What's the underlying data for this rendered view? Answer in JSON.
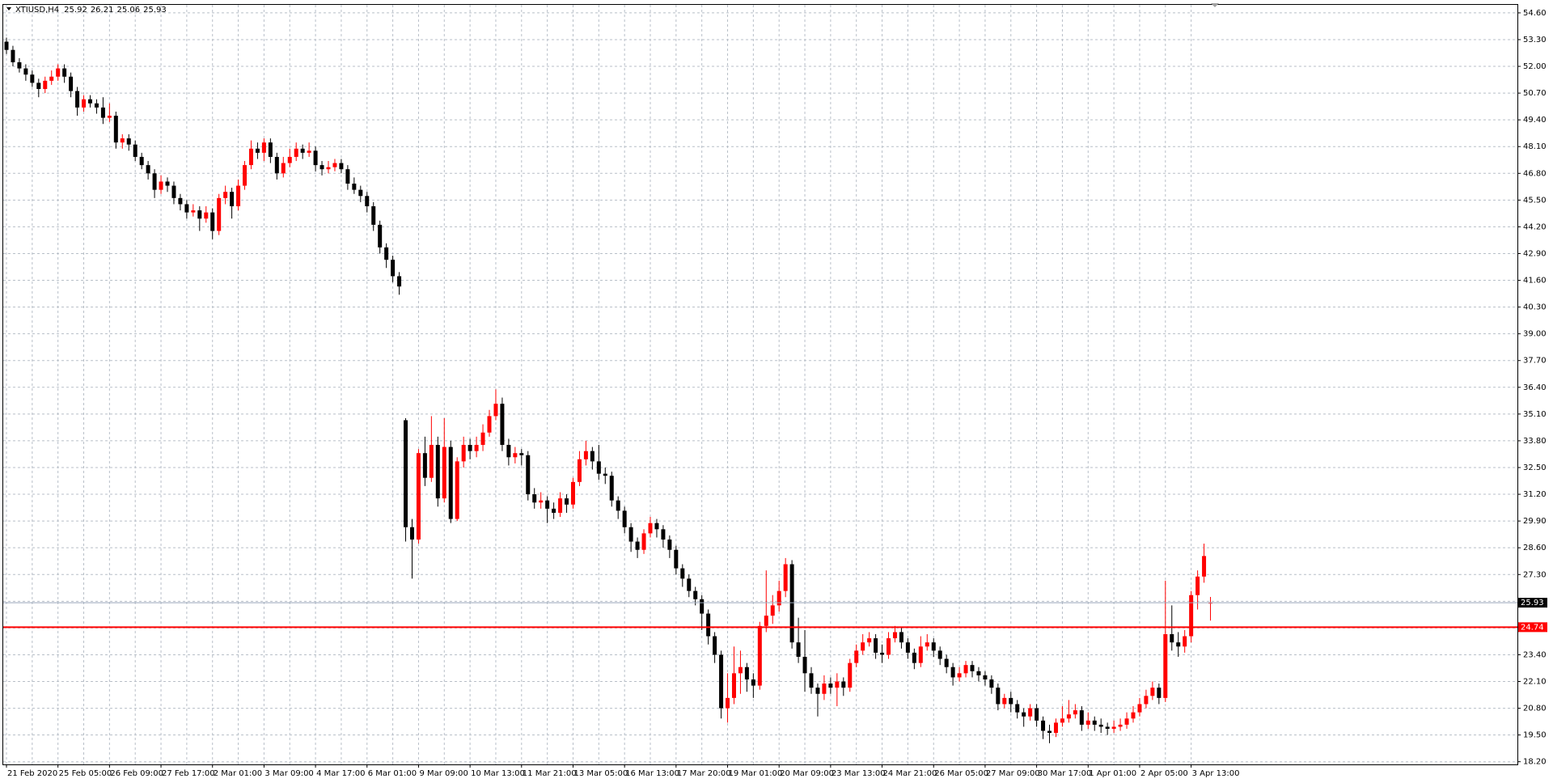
{
  "chart_data": {
    "type": "candlestick",
    "symbol": "XTIUSD,H4",
    "up_color": "#ff0000",
    "down_color": "#000000",
    "grid": true,
    "grid_color": "#b8bfc8",
    "ylim": [
      18.07,
      54.99
    ],
    "yticks": [
      {
        "value": 18.2,
        "label": "18.20"
      },
      {
        "value": 19.5,
        "label": "19.50"
      },
      {
        "value": 20.8,
        "label": "20.80"
      },
      {
        "value": 22.1,
        "label": "22.10"
      },
      {
        "value": 23.4,
        "label": "23.40"
      },
      {
        "value": 24.7,
        "label": "24.70"
      },
      {
        "value": 26.0,
        "label": "26.00"
      },
      {
        "value": 27.3,
        "label": "27.30"
      },
      {
        "value": 28.6,
        "label": "28.60"
      },
      {
        "value": 29.9,
        "label": "29.90"
      },
      {
        "value": 31.2,
        "label": "31.20"
      },
      {
        "value": 32.5,
        "label": "32.50"
      },
      {
        "value": 33.8,
        "label": "33.80"
      },
      {
        "value": 35.1,
        "label": "35.10"
      },
      {
        "value": 36.4,
        "label": "36.40"
      },
      {
        "value": 37.7,
        "label": "37.70"
      },
      {
        "value": 39.0,
        "label": "39.00"
      },
      {
        "value": 40.3,
        "label": "40.30"
      },
      {
        "value": 41.6,
        "label": "41.60"
      },
      {
        "value": 42.9,
        "label": "42.90"
      },
      {
        "value": 44.2,
        "label": "44.20"
      },
      {
        "value": 45.5,
        "label": "45.50"
      },
      {
        "value": 46.8,
        "label": "46.80"
      },
      {
        "value": 48.1,
        "label": "48.10"
      },
      {
        "value": 49.4,
        "label": "49.40"
      },
      {
        "value": 50.7,
        "label": "50.70"
      },
      {
        "value": 52.0,
        "label": "52.00"
      },
      {
        "value": 53.3,
        "label": "53.30"
      },
      {
        "value": 54.6,
        "label": "54.60"
      }
    ],
    "price_lines": [
      {
        "value": 25.93,
        "color": "#9aa8bb",
        "label_color": "#000000"
      },
      {
        "value": 24.74,
        "color": "#ff0000",
        "label_color": "#ff0000"
      }
    ],
    "categories": [
      "21 Feb 2020",
      null,
      null,
      null,
      null,
      null,
      null,
      null,
      "25 Feb 05:00",
      null,
      null,
      null,
      null,
      null,
      null,
      null,
      "26 Feb 09:00",
      null,
      null,
      null,
      null,
      null,
      null,
      null,
      "27 Feb 17:00",
      null,
      null,
      null,
      null,
      null,
      null,
      null,
      "2 Mar 01:00",
      null,
      null,
      null,
      null,
      null,
      null,
      null,
      "3 Mar 09:00",
      null,
      null,
      null,
      null,
      null,
      null,
      null,
      "4 Mar 17:00",
      null,
      null,
      null,
      null,
      null,
      null,
      null,
      "6 Mar 01:00",
      null,
      null,
      null,
      null,
      null,
      null,
      null,
      "9 Mar 09:00",
      null,
      null,
      null,
      null,
      null,
      null,
      null,
      "10 Mar 13:00",
      null,
      null,
      null,
      null,
      null,
      null,
      null,
      "11 Mar 21:00",
      null,
      null,
      null,
      null,
      null,
      null,
      null,
      "13 Mar 05:00",
      null,
      null,
      null,
      null,
      null,
      null,
      null,
      "16 Mar 13:00",
      null,
      null,
      null,
      null,
      null,
      null,
      null,
      "17 Mar 20:00",
      null,
      null,
      null,
      null,
      null,
      null,
      null,
      "19 Mar 01:00",
      null,
      null,
      null,
      null,
      null,
      null,
      null,
      "20 Mar 09:00",
      null,
      null,
      null,
      null,
      null,
      null,
      null,
      "23 Mar 13:00",
      null,
      null,
      null,
      null,
      null,
      null,
      null,
      "24 Mar 21:00",
      null,
      null,
      null,
      null,
      null,
      null,
      null,
      "26 Mar 05:00",
      null,
      null,
      null,
      null,
      null,
      null,
      null,
      "27 Mar 09:00",
      null,
      null,
      null,
      null,
      null,
      null,
      null,
      "30 Mar 17:00",
      null,
      null,
      null,
      null,
      null,
      null,
      null,
      "1 Apr 01:00",
      null,
      null,
      null,
      null,
      null,
      null,
      null,
      "2 Apr 05:00",
      null,
      null,
      null,
      null,
      null,
      null,
      null,
      "3 Apr 13:00",
      null,
      null,
      null
    ],
    "ohlc": [
      [
        53.2,
        53.4,
        52.6,
        52.8
      ],
      [
        52.8,
        53.0,
        52.0,
        52.2
      ],
      [
        52.2,
        52.4,
        51.7,
        51.9
      ],
      [
        51.9,
        52.1,
        51.3,
        51.6
      ],
      [
        51.6,
        51.8,
        51.0,
        51.2
      ],
      [
        51.2,
        51.4,
        50.5,
        50.9
      ],
      [
        50.9,
        51.5,
        50.7,
        51.3
      ],
      [
        51.3,
        51.8,
        51.1,
        51.5
      ],
      [
        51.5,
        52.1,
        51.3,
        51.9
      ],
      [
        51.9,
        52.1,
        51.2,
        51.5
      ],
      [
        51.5,
        51.7,
        50.5,
        50.8
      ],
      [
        50.8,
        51.0,
        49.6,
        50.0
      ],
      [
        50.0,
        50.6,
        49.8,
        50.4
      ],
      [
        50.4,
        50.6,
        50.0,
        50.2
      ],
      [
        50.2,
        50.4,
        49.7,
        50.0
      ],
      [
        50.0,
        50.5,
        49.2,
        49.5
      ],
      [
        49.5,
        50.2,
        49.3,
        49.6
      ],
      [
        49.6,
        49.8,
        48.0,
        48.3
      ],
      [
        48.3,
        48.7,
        48.0,
        48.5
      ],
      [
        48.5,
        48.7,
        47.9,
        48.2
      ],
      [
        48.2,
        48.4,
        47.4,
        47.6
      ],
      [
        47.6,
        47.8,
        47.0,
        47.2
      ],
      [
        47.2,
        47.4,
        46.5,
        46.8
      ],
      [
        46.8,
        47.0,
        45.6,
        46.0
      ],
      [
        46.0,
        46.7,
        45.8,
        46.4
      ],
      [
        46.4,
        46.6,
        45.9,
        46.2
      ],
      [
        46.2,
        46.4,
        45.3,
        45.6
      ],
      [
        45.6,
        45.8,
        45.0,
        45.3
      ],
      [
        45.3,
        45.5,
        44.6,
        44.9
      ],
      [
        44.9,
        45.3,
        44.7,
        45.0
      ],
      [
        45.0,
        45.2,
        44.0,
        44.6
      ],
      [
        44.6,
        45.2,
        44.4,
        44.9
      ],
      [
        44.9,
        45.1,
        43.6,
        44.0
      ],
      [
        44.0,
        45.8,
        43.8,
        45.6
      ],
      [
        45.6,
        46.2,
        45.3,
        45.9
      ],
      [
        45.9,
        46.1,
        44.6,
        45.2
      ],
      [
        45.2,
        46.5,
        45.0,
        46.2
      ],
      [
        46.2,
        47.4,
        46.0,
        47.2
      ],
      [
        47.2,
        48.4,
        47.0,
        48.0
      ],
      [
        48.0,
        48.3,
        47.5,
        47.8
      ],
      [
        47.8,
        48.5,
        47.4,
        48.3
      ],
      [
        48.3,
        48.5,
        47.3,
        47.6
      ],
      [
        47.6,
        47.8,
        46.5,
        46.8
      ],
      [
        46.8,
        47.6,
        46.6,
        47.3
      ],
      [
        47.3,
        48.0,
        47.1,
        47.6
      ],
      [
        47.6,
        48.3,
        47.4,
        48.0
      ],
      [
        48.0,
        48.2,
        47.5,
        47.8
      ],
      [
        47.8,
        48.3,
        47.6,
        47.9
      ],
      [
        47.9,
        48.1,
        46.9,
        47.2
      ],
      [
        47.2,
        47.4,
        46.7,
        47.0
      ],
      [
        47.0,
        47.4,
        46.8,
        47.1
      ],
      [
        47.1,
        47.5,
        46.9,
        47.3
      ],
      [
        47.3,
        47.5,
        46.8,
        47.0
      ],
      [
        47.0,
        47.2,
        46.0,
        46.3
      ],
      [
        46.3,
        46.6,
        45.8,
        46.0
      ],
      [
        46.0,
        46.2,
        45.4,
        45.7
      ],
      [
        45.7,
        45.9,
        44.9,
        45.2
      ],
      [
        45.2,
        45.4,
        44.0,
        44.3
      ],
      [
        44.3,
        44.5,
        42.9,
        43.2
      ],
      [
        43.2,
        43.4,
        42.2,
        42.6
      ],
      [
        42.6,
        42.8,
        41.5,
        41.8
      ],
      [
        41.8,
        42.0,
        40.9,
        41.3
      ],
      [
        34.8,
        34.9,
        28.9,
        29.6
      ],
      [
        29.6,
        30.0,
        27.1,
        29.0
      ],
      [
        29.0,
        33.4,
        28.8,
        33.2
      ],
      [
        33.2,
        34.0,
        31.6,
        32.0
      ],
      [
        32.0,
        35.0,
        31.8,
        33.6
      ],
      [
        33.6,
        34.0,
        30.6,
        31.0
      ],
      [
        31.0,
        34.9,
        30.8,
        33.5
      ],
      [
        33.5,
        33.8,
        29.8,
        30.0
      ],
      [
        30.0,
        33.0,
        29.9,
        32.8
      ],
      [
        32.8,
        34.0,
        32.5,
        33.6
      ],
      [
        33.6,
        33.9,
        32.9,
        33.3
      ],
      [
        33.3,
        34.0,
        33.0,
        33.6
      ],
      [
        33.6,
        34.6,
        33.3,
        34.2
      ],
      [
        34.2,
        35.3,
        34.0,
        35.0
      ],
      [
        35.0,
        36.3,
        34.8,
        35.6
      ],
      [
        35.6,
        35.9,
        33.3,
        33.6
      ],
      [
        33.6,
        33.9,
        32.6,
        33.0
      ],
      [
        33.0,
        33.5,
        32.7,
        33.2
      ],
      [
        33.2,
        33.4,
        32.6,
        33.1
      ],
      [
        33.1,
        33.3,
        30.9,
        31.2
      ],
      [
        31.2,
        31.5,
        30.5,
        30.8
      ],
      [
        30.8,
        31.3,
        30.5,
        30.9
      ],
      [
        30.9,
        31.1,
        29.8,
        30.5
      ],
      [
        30.5,
        30.8,
        30.0,
        30.3
      ],
      [
        30.3,
        31.3,
        30.1,
        31.0
      ],
      [
        31.0,
        31.2,
        30.3,
        30.7
      ],
      [
        30.7,
        32.0,
        30.5,
        31.8
      ],
      [
        31.8,
        33.3,
        31.6,
        32.9
      ],
      [
        32.9,
        33.8,
        32.6,
        33.3
      ],
      [
        33.3,
        33.5,
        32.4,
        32.8
      ],
      [
        32.8,
        33.6,
        31.9,
        32.2
      ],
      [
        32.2,
        32.5,
        31.7,
        32.1
      ],
      [
        32.1,
        32.3,
        30.6,
        30.9
      ],
      [
        30.9,
        31.1,
        30.0,
        30.4
      ],
      [
        30.4,
        30.6,
        29.3,
        29.6
      ],
      [
        29.6,
        29.8,
        28.4,
        28.9
      ],
      [
        28.9,
        29.1,
        28.1,
        28.5
      ],
      [
        28.5,
        29.5,
        28.3,
        29.3
      ],
      [
        29.3,
        30.1,
        29.1,
        29.8
      ],
      [
        29.8,
        30.0,
        29.1,
        29.5
      ],
      [
        29.5,
        29.7,
        28.6,
        29.0
      ],
      [
        29.0,
        29.2,
        28.1,
        28.5
      ],
      [
        28.5,
        28.7,
        27.3,
        27.6
      ],
      [
        27.6,
        27.8,
        26.7,
        27.1
      ],
      [
        27.1,
        27.3,
        26.2,
        26.5
      ],
      [
        26.5,
        26.7,
        25.8,
        26.1
      ],
      [
        26.1,
        26.3,
        24.6,
        25.4
      ],
      [
        25.4,
        25.6,
        23.9,
        24.3
      ],
      [
        24.3,
        24.5,
        23.0,
        23.4
      ],
      [
        23.4,
        23.6,
        20.3,
        20.8
      ],
      [
        20.8,
        22.5,
        20.1,
        21.3
      ],
      [
        21.3,
        23.8,
        21.0,
        22.5
      ],
      [
        22.5,
        23.6,
        21.5,
        22.8
      ],
      [
        22.8,
        23.0,
        21.6,
        22.2
      ],
      [
        22.2,
        22.5,
        21.3,
        21.9
      ],
      [
        21.9,
        25.0,
        21.7,
        24.8
      ],
      [
        24.8,
        27.5,
        24.5,
        25.3
      ],
      [
        25.3,
        26.3,
        24.9,
        25.8
      ],
      [
        25.8,
        27.0,
        25.5,
        26.5
      ],
      [
        26.5,
        28.1,
        26.2,
        27.8
      ],
      [
        27.8,
        28.0,
        23.7,
        24.0
      ],
      [
        24.0,
        25.2,
        23.0,
        23.3
      ],
      [
        23.3,
        24.6,
        21.6,
        22.5
      ],
      [
        22.5,
        22.8,
        21.5,
        21.8
      ],
      [
        21.8,
        22.0,
        20.4,
        21.5
      ],
      [
        21.5,
        22.4,
        21.2,
        22.0
      ],
      [
        22.0,
        22.3,
        21.5,
        21.8
      ],
      [
        21.8,
        22.5,
        20.9,
        22.1
      ],
      [
        22.1,
        22.3,
        21.4,
        21.8
      ],
      [
        21.8,
        23.2,
        21.6,
        23.0
      ],
      [
        23.0,
        23.9,
        22.8,
        23.6
      ],
      [
        23.6,
        24.4,
        23.4,
        24.0
      ],
      [
        24.0,
        24.5,
        23.8,
        24.2
      ],
      [
        24.2,
        24.4,
        23.2,
        23.5
      ],
      [
        23.5,
        23.9,
        23.0,
        23.4
      ],
      [
        23.4,
        24.5,
        23.2,
        24.2
      ],
      [
        24.2,
        24.8,
        24.0,
        24.5
      ],
      [
        24.5,
        24.7,
        23.7,
        24.0
      ],
      [
        24.0,
        24.2,
        23.2,
        23.5
      ],
      [
        23.5,
        23.7,
        22.7,
        23.0
      ],
      [
        23.0,
        24.3,
        22.8,
        23.8
      ],
      [
        23.8,
        24.4,
        23.6,
        24.0
      ],
      [
        24.0,
        24.2,
        23.3,
        23.6
      ],
      [
        23.6,
        23.8,
        22.9,
        23.2
      ],
      [
        23.2,
        23.4,
        22.5,
        22.8
      ],
      [
        22.8,
        23.0,
        21.9,
        22.3
      ],
      [
        22.3,
        22.8,
        22.1,
        22.5
      ],
      [
        22.5,
        23.1,
        22.3,
        22.9
      ],
      [
        22.9,
        23.1,
        22.3,
        22.6
      ],
      [
        22.6,
        22.8,
        22.1,
        22.4
      ],
      [
        22.4,
        22.6,
        21.9,
        22.2
      ],
      [
        22.2,
        22.4,
        21.5,
        21.8
      ],
      [
        21.8,
        22.0,
        20.7,
        21.0
      ],
      [
        21.0,
        21.5,
        20.8,
        21.3
      ],
      [
        21.3,
        21.6,
        20.6,
        21.0
      ],
      [
        21.0,
        21.2,
        20.3,
        20.6
      ],
      [
        20.6,
        20.8,
        19.9,
        20.4
      ],
      [
        20.4,
        21.0,
        20.2,
        20.8
      ],
      [
        20.8,
        21.0,
        19.9,
        20.2
      ],
      [
        20.2,
        20.4,
        19.3,
        19.7
      ],
      [
        19.7,
        20.0,
        19.1,
        19.6
      ],
      [
        19.6,
        20.3,
        19.4,
        20.1
      ],
      [
        20.1,
        20.9,
        19.9,
        20.3
      ],
      [
        20.3,
        21.2,
        20.1,
        20.5
      ],
      [
        20.5,
        21.0,
        20.3,
        20.7
      ],
      [
        20.7,
        20.9,
        19.7,
        20.0
      ],
      [
        20.0,
        20.6,
        19.8,
        20.2
      ],
      [
        20.2,
        20.4,
        19.7,
        20.0
      ],
      [
        20.0,
        20.3,
        19.6,
        19.9
      ],
      [
        19.9,
        20.1,
        19.5,
        19.8
      ],
      [
        19.8,
        20.2,
        19.6,
        19.9
      ],
      [
        19.9,
        20.3,
        19.7,
        20.0
      ],
      [
        20.0,
        20.6,
        19.8,
        20.3
      ],
      [
        20.3,
        20.9,
        20.1,
        20.6
      ],
      [
        20.6,
        21.3,
        20.4,
        21.0
      ],
      [
        21.0,
        21.7,
        20.8,
        21.4
      ],
      [
        21.4,
        22.1,
        21.2,
        21.8
      ],
      [
        21.8,
        22.0,
        21.0,
        21.3
      ],
      [
        21.3,
        27.0,
        21.1,
        24.4
      ],
      [
        24.4,
        25.8,
        23.6,
        24.0
      ],
      [
        24.0,
        24.5,
        23.3,
        23.8
      ],
      [
        23.8,
        24.6,
        23.5,
        24.3
      ],
      [
        24.3,
        26.5,
        24.0,
        26.3
      ],
      [
        26.3,
        27.5,
        25.6,
        27.2
      ],
      [
        27.2,
        28.8,
        26.9,
        28.2
      ],
      [
        25.92,
        26.21,
        25.06,
        25.93
      ]
    ]
  }
}
